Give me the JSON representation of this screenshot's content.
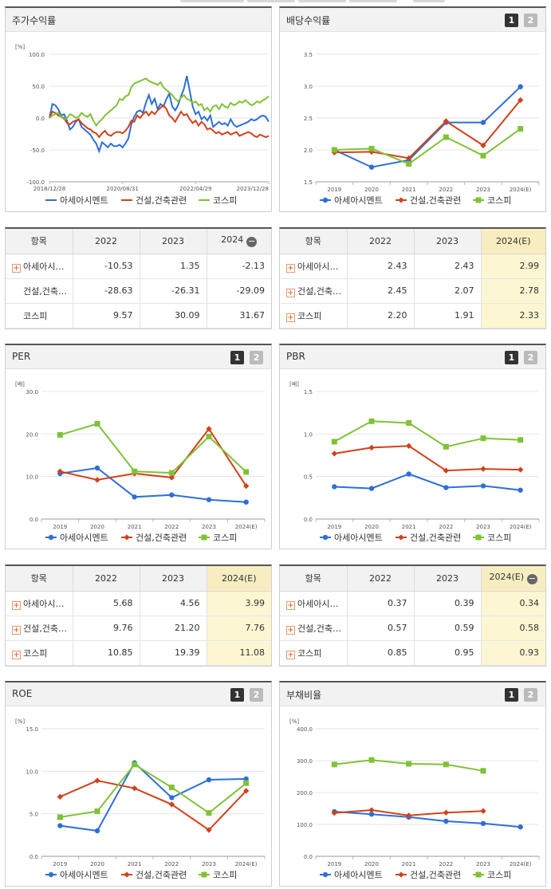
{
  "legend": {
    "series": [
      "아세아시멘트",
      "건설,건축관련",
      "코스피"
    ],
    "colors": [
      "#2e6fd6",
      "#d0421b",
      "#80c237"
    ]
  },
  "panels": {
    "stock_return": {
      "title": "주가수익률",
      "table": {
        "header": [
          "항목",
          "2022",
          "2023",
          "2024"
        ],
        "collapse_icon": "minus-icon",
        "rows": [
          {
            "label": "아세아시…",
            "values": [
              "-10.53",
              "1.35",
              "-2.13"
            ],
            "expandable": true
          },
          {
            "label": "건설,건축…",
            "values": [
              "-28.63",
              "-26.31",
              "-29.09"
            ],
            "expandable": false
          },
          {
            "label": "코스피",
            "values": [
              "9.57",
              "30.09",
              "31.67"
            ],
            "expandable": false
          }
        ]
      }
    },
    "dividend": {
      "title": "배당수익률",
      "pages": [
        "1",
        "2"
      ],
      "table": {
        "header": [
          "항목",
          "2022",
          "2023",
          "2024(E)"
        ],
        "rows": [
          {
            "label": "아세아시…",
            "values": [
              "2.43",
              "2.43",
              "2.99"
            ]
          },
          {
            "label": "건설,건축…",
            "values": [
              "2.45",
              "2.07",
              "2.78"
            ]
          },
          {
            "label": "코스피",
            "values": [
              "2.20",
              "1.91",
              "2.33"
            ]
          }
        ]
      }
    },
    "per": {
      "title": "PER",
      "pages": [
        "1",
        "2"
      ],
      "table": {
        "header": [
          "항목",
          "2022",
          "2023",
          "2024(E)"
        ],
        "rows": [
          {
            "label": "아세아시…",
            "values": [
              "5.68",
              "4.56",
              "3.99"
            ]
          },
          {
            "label": "건설,건축…",
            "values": [
              "9.76",
              "21.20",
              "7.76"
            ]
          },
          {
            "label": "코스피",
            "values": [
              "10.85",
              "19.39",
              "11.08"
            ]
          }
        ]
      }
    },
    "pbr": {
      "title": "PBR",
      "pages": [
        "1",
        "2"
      ],
      "table": {
        "header": [
          "항목",
          "2022",
          "2023",
          "2024(E)"
        ],
        "collapse_icon": "minus-icon",
        "rows": [
          {
            "label": "아세아시…",
            "values": [
              "0.37",
              "0.39",
              "0.34"
            ]
          },
          {
            "label": "건설,건축…",
            "values": [
              "0.57",
              "0.59",
              "0.58"
            ]
          },
          {
            "label": "코스피",
            "values": [
              "0.85",
              "0.95",
              "0.93"
            ]
          }
        ]
      }
    },
    "roe": {
      "title": "ROE",
      "pages": [
        "1",
        "2"
      ]
    },
    "debt": {
      "title": "부채비율",
      "pages": [
        "1",
        "2"
      ]
    }
  },
  "chart_data": [
    {
      "id": "stock_return",
      "type": "line",
      "unit": "[%]",
      "ylim": [
        -100,
        100
      ],
      "yticks": [
        "100.0",
        "50.0",
        "0.0",
        "-50.0",
        "-100.0"
      ],
      "xticks": [
        "2018/12/28",
        "2020/08/31",
        "2022/04/29",
        "2023/12/28"
      ],
      "series": [
        {
          "name": "아세아시멘트",
          "values": [
            0,
            22,
            20,
            14,
            4,
            6,
            -4,
            -18,
            -14,
            -6,
            -2,
            -14,
            -18,
            -22,
            -26,
            -34,
            -40,
            -52,
            -38,
            -42,
            -46,
            -40,
            -44,
            -44,
            -42,
            -46,
            -40,
            -32,
            -10,
            2,
            10,
            12,
            8,
            24,
            36,
            22,
            30,
            14,
            22,
            18,
            30,
            38,
            18,
            12,
            20,
            34,
            46,
            66,
            42,
            18,
            6,
            10,
            -2,
            2,
            -4,
            4,
            -14,
            -10,
            -6,
            -10,
            -8,
            -12,
            -2,
            -10,
            -14,
            -12,
            -10,
            -8,
            -6,
            -2,
            -4,
            -2,
            2,
            4,
            2,
            -6
          ]
        },
        {
          "name": "건설,건축관련",
          "values": [
            0,
            10,
            8,
            4,
            2,
            0,
            -8,
            -10,
            -6,
            -4,
            -2,
            -8,
            -12,
            -16,
            -18,
            -22,
            -24,
            -30,
            -24,
            -20,
            -26,
            -28,
            -24,
            -22,
            -22,
            -24,
            -20,
            -14,
            -4,
            -6,
            4,
            0,
            6,
            10,
            4,
            10,
            6,
            12,
            16,
            20,
            14,
            4,
            0,
            -6,
            2,
            10,
            4,
            6,
            -2,
            -8,
            -4,
            -12,
            -6,
            -10,
            -18,
            -16,
            -20,
            -24,
            -22,
            -26,
            -24,
            -22,
            -26,
            -24,
            -22,
            -28,
            -26,
            -24,
            -22,
            -24,
            -28,
            -30,
            -26,
            -28,
            -30,
            -28
          ]
        },
        {
          "name": "코스피",
          "values": [
            0,
            4,
            6,
            8,
            2,
            -2,
            0,
            6,
            4,
            0,
            2,
            8,
            4,
            2,
            6,
            -4,
            -12,
            -6,
            -2,
            4,
            8,
            12,
            16,
            20,
            30,
            28,
            34,
            36,
            48,
            54,
            56,
            58,
            60,
            62,
            58,
            56,
            54,
            52,
            56,
            48,
            44,
            40,
            36,
            30,
            26,
            32,
            36,
            30,
            28,
            24,
            26,
            20,
            22,
            12,
            16,
            10,
            18,
            20,
            14,
            22,
            18,
            16,
            24,
            20,
            22,
            26,
            24,
            28,
            24,
            20,
            22,
            26,
            24,
            28,
            30,
            34
          ]
        }
      ]
    },
    {
      "id": "dividend",
      "type": "line",
      "ylim": [
        1.5,
        3.5
      ],
      "yticks": [
        "3.5",
        "3.0",
        "2.5",
        "2.0",
        "1.5"
      ],
      "categories": [
        "2019",
        "2020",
        "2021",
        "2022",
        "2023",
        "2024(E)"
      ],
      "series": [
        {
          "name": "아세아시멘트",
          "values": [
            2.0,
            1.73,
            1.84,
            2.43,
            2.43,
            2.99
          ]
        },
        {
          "name": "건설,건축관련",
          "values": [
            1.96,
            1.97,
            1.87,
            2.45,
            2.07,
            2.78
          ]
        },
        {
          "name": "코스피",
          "values": [
            2.0,
            2.02,
            1.78,
            2.2,
            1.91,
            2.33
          ]
        }
      ]
    },
    {
      "id": "per",
      "type": "line",
      "unit": "[배]",
      "ylim": [
        0,
        30
      ],
      "yticks": [
        "30.0",
        "20.0",
        "10.0",
        "0.0"
      ],
      "categories": [
        "2019",
        "2020",
        "2021",
        "2022",
        "2023",
        "2024(E)"
      ],
      "series": [
        {
          "name": "아세아시멘트",
          "values": [
            10.7,
            12.0,
            5.2,
            5.68,
            4.56,
            3.99
          ]
        },
        {
          "name": "건설,건축관련",
          "values": [
            11.2,
            9.2,
            10.7,
            9.76,
            21.2,
            7.76
          ]
        },
        {
          "name": "코스피",
          "values": [
            19.8,
            22.4,
            11.2,
            10.85,
            19.39,
            11.08
          ]
        }
      ]
    },
    {
      "id": "pbr",
      "type": "line",
      "unit": "[배]",
      "ylim": [
        0,
        1.5
      ],
      "yticks": [
        "1.5",
        "1.0",
        "0.5",
        "0.0"
      ],
      "categories": [
        "2019",
        "2020",
        "2021",
        "2022",
        "2023",
        "2024(E)"
      ],
      "series": [
        {
          "name": "아세아시멘트",
          "values": [
            0.38,
            0.36,
            0.53,
            0.37,
            0.39,
            0.34
          ]
        },
        {
          "name": "건설,건축관련",
          "values": [
            0.77,
            0.84,
            0.86,
            0.57,
            0.59,
            0.58
          ]
        },
        {
          "name": "코스피",
          "values": [
            0.91,
            1.15,
            1.13,
            0.85,
            0.95,
            0.93
          ]
        }
      ]
    },
    {
      "id": "roe",
      "type": "line",
      "unit": "[%]",
      "ylim": [
        0,
        15
      ],
      "yticks": [
        "15.0",
        "10.0",
        "5.0",
        "0.0"
      ],
      "categories": [
        "2019",
        "2020",
        "2021",
        "2022",
        "2023",
        "2024(E)"
      ],
      "series": [
        {
          "name": "아세아시멘트",
          "values": [
            3.6,
            3.0,
            11.0,
            6.9,
            9.0,
            9.1
          ]
        },
        {
          "name": "건설,건축관련",
          "values": [
            7.0,
            8.9,
            8.0,
            6.1,
            3.1,
            7.7
          ]
        },
        {
          "name": "코스피",
          "values": [
            4.6,
            5.3,
            10.8,
            8.1,
            5.1,
            8.6
          ]
        }
      ]
    },
    {
      "id": "debt",
      "type": "line",
      "unit": "[%]",
      "ylim": [
        0,
        400
      ],
      "yticks": [
        "400.0",
        "300.0",
        "200.0",
        "100.0",
        "0.0"
      ],
      "categories": [
        "2019",
        "2020",
        "2021",
        "2022",
        "2023",
        "2024(E)"
      ],
      "series": [
        {
          "name": "아세아시멘트",
          "values": [
            140,
            132,
            123,
            110,
            103,
            92
          ]
        },
        {
          "name": "건설,건축관련",
          "values": [
            136,
            145,
            128,
            137,
            142,
            null
          ]
        },
        {
          "name": "코스피",
          "values": [
            288,
            302,
            290,
            288,
            268,
            null
          ]
        }
      ]
    }
  ]
}
